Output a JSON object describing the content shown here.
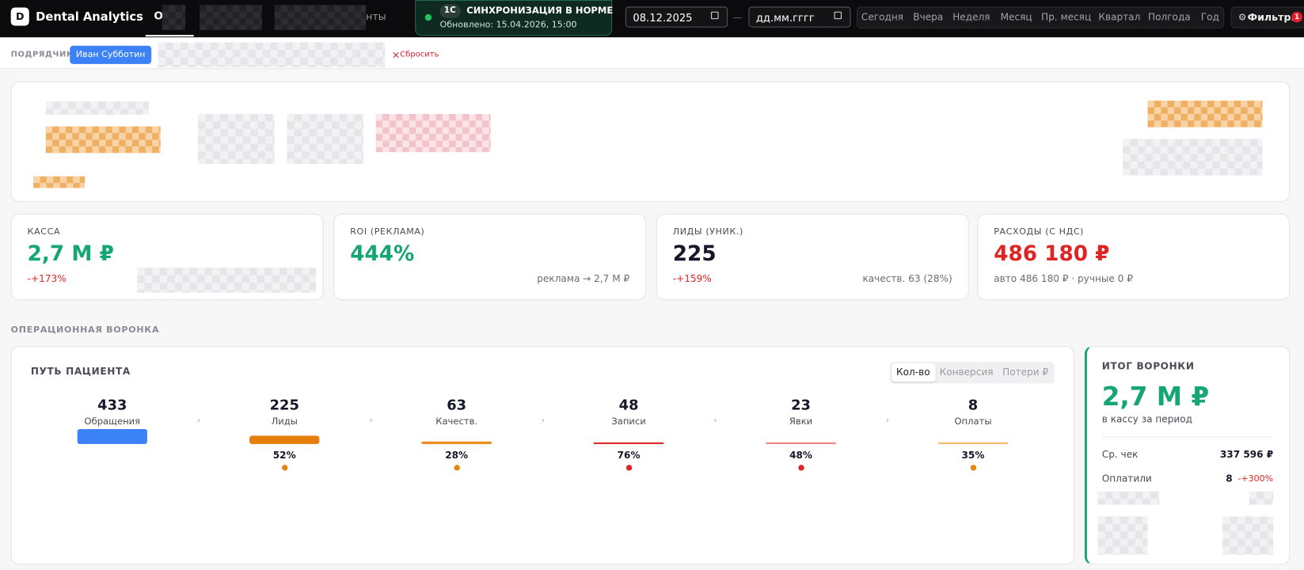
{
  "header": {
    "logo": "D",
    "brand": "Dental Analytics",
    "nav": [
      "О",
      "нты"
    ],
    "sync": {
      "badge": "1С",
      "title": "СИНХРОНИЗАЦИЯ В НОРМЕ",
      "updated": "Обновлено: 15.04.2026, 15:00"
    },
    "date_from": "08.12.2025",
    "date_separator": "—",
    "date_to": "дд.мм.гггг",
    "periods": [
      "Сегодня",
      "Вчера",
      "Неделя",
      "Месяц",
      "Пр. месяц",
      "Квартал",
      "Полгода",
      "Год"
    ],
    "filters": {
      "icon": "⚙",
      "label": "Фильтры",
      "count": 1
    }
  },
  "filter_bar": {
    "label": "ПОДРЯДЧИК:",
    "chip": "Иван Субботин",
    "reset_icon": "×",
    "reset": "Сбросить"
  },
  "kpis": [
    {
      "label": "КАССА",
      "value": "2,7 М ₽",
      "delta": "-+173%"
    },
    {
      "label": "ROI (РЕКЛАМА)",
      "value": "444%",
      "note": "реклама → 2,7 М ₽"
    },
    {
      "label": "ЛИДЫ (УНИК.)",
      "value": 225,
      "delta": "-+159%",
      "note": "качеств. 63 (28%)"
    },
    {
      "label": "РАСХОДЫ (С НДС)",
      "value": "486 180 ₽",
      "note": "авто 486 180 ₽ · ручные 0 ₽"
    }
  ],
  "section_title": "ОПЕРАЦИОННАЯ ВОРОНКА",
  "funnel": {
    "title": "ПУТЬ ПАЦИЕНТА",
    "tabs": [
      "Кол-во",
      "Конверсия",
      "Потери ₽"
    ],
    "stages": [
      {
        "count": 433,
        "label": "Обращения"
      },
      {
        "count": 225,
        "label": "Лиды",
        "conversion": "52%"
      },
      {
        "count": 63,
        "label": "Качеств.",
        "conversion": "28%"
      },
      {
        "count": 48,
        "label": "Записи",
        "conversion": "76%"
      },
      {
        "count": 23,
        "label": "Явки",
        "conversion": "48%"
      },
      {
        "count": 8,
        "label": "Оплаты",
        "conversion": "35%"
      }
    ]
  },
  "summary": {
    "title": "ИТОГ ВОРОНКИ",
    "value": "2,7 М ₽",
    "caption": "в кассу за период",
    "rows": [
      {
        "label": "Ср. чек",
        "value": "337 596 ₽"
      },
      {
        "label": "Оплатили",
        "value": 8,
        "delta": "-+300%"
      }
    ]
  }
}
